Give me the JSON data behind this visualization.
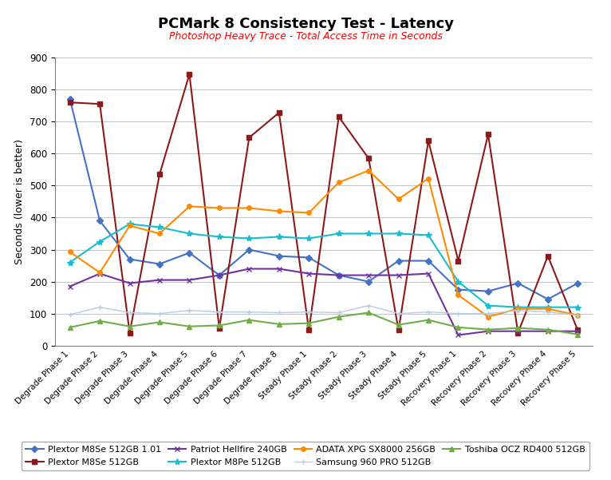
{
  "title": "PCMark 8 Consistency Test - Latency",
  "subtitle": "Photoshop Heavy Trace - Total Access Time in Seconds",
  "ylabel": "Seconds (lower is better)",
  "ylim": [
    0,
    900
  ],
  "yticks": [
    0,
    100,
    200,
    300,
    400,
    500,
    600,
    700,
    800,
    900
  ],
  "categories": [
    "Degrade Phase 1",
    "Degrade Phase 2",
    "Degrade Phase 3",
    "Degrade Phase 4",
    "Degrade Phase 5",
    "Degrade Phase 6",
    "Degrade Phase 7",
    "Degrade Phase 8",
    "Steady Phase 1",
    "Steady Phase 2",
    "Steady Phase 3",
    "Steady Phase 4",
    "Steady Phase 5",
    "Recovery Phase 1",
    "Recovery Phase 2",
    "Recovery Phase 3",
    "Recovery Phase 4",
    "Recovery Phase 5"
  ],
  "series": [
    {
      "label": "Plextor M8Se 512GB 1.01",
      "color": "#4472C4",
      "marker": "D",
      "markersize": 4,
      "linewidth": 1.5,
      "values": [
        770,
        390,
        270,
        255,
        290,
        220,
        300,
        280,
        275,
        220,
        200,
        265,
        265,
        175,
        170,
        195,
        145,
        195
      ]
    },
    {
      "label": "Plextor M8Se 512GB",
      "color": "#8B1A1A",
      "marker": "s",
      "markersize": 4,
      "linewidth": 1.5,
      "values": [
        760,
        755,
        40,
        535,
        848,
        55,
        650,
        728,
        48,
        715,
        585,
        48,
        640,
        265,
        660,
        40,
        280,
        48
      ]
    },
    {
      "label": "Patriot Hellfire 240GB",
      "color": "#7030A0",
      "marker": "x",
      "markersize": 5,
      "linewidth": 1.5,
      "values": [
        185,
        225,
        195,
        205,
        205,
        220,
        240,
        240,
        225,
        220,
        220,
        220,
        225,
        33,
        45,
        45,
        45,
        45
      ]
    },
    {
      "label": "Plextor M8Pe 512GB",
      "color": "#17BECF",
      "marker": "*",
      "markersize": 6,
      "linewidth": 1.5,
      "values": [
        260,
        325,
        380,
        370,
        350,
        340,
        335,
        340,
        335,
        350,
        350,
        350,
        345,
        200,
        125,
        120,
        120,
        120
      ]
    },
    {
      "label": "ADATA XPG SX8000 256GB",
      "color": "#FF8C00",
      "marker": "o",
      "markersize": 4,
      "linewidth": 1.5,
      "values": [
        293,
        228,
        375,
        350,
        435,
        430,
        430,
        420,
        415,
        510,
        547,
        458,
        522,
        158,
        90,
        115,
        115,
        95
      ]
    },
    {
      "label": "Samsung 960 PRO 512GB",
      "color": "#B8CCE4",
      "marker": "+",
      "markersize": 5,
      "linewidth": 1.0,
      "values": [
        97,
        120,
        103,
        100,
        110,
        105,
        105,
        103,
        105,
        103,
        125,
        100,
        105,
        100,
        100,
        110,
        105,
        95
      ]
    },
    {
      "label": "Toshiba OCZ RD400 512GB",
      "color": "#70AD47",
      "marker": "^",
      "markersize": 4,
      "linewidth": 1.5,
      "values": [
        57,
        77,
        60,
        73,
        60,
        63,
        80,
        67,
        70,
        90,
        103,
        65,
        80,
        57,
        50,
        55,
        50,
        35
      ]
    }
  ],
  "background_color": "#FFFFFF",
  "plot_bg_color": "#FFFFFF",
  "grid_color": "#C8C8C8",
  "title_fontsize": 13,
  "subtitle_fontsize": 9,
  "subtitle_color": "#FF0000",
  "legend_fontsize": 8,
  "legend_order": [
    0,
    1,
    2,
    3,
    4,
    5,
    6
  ]
}
